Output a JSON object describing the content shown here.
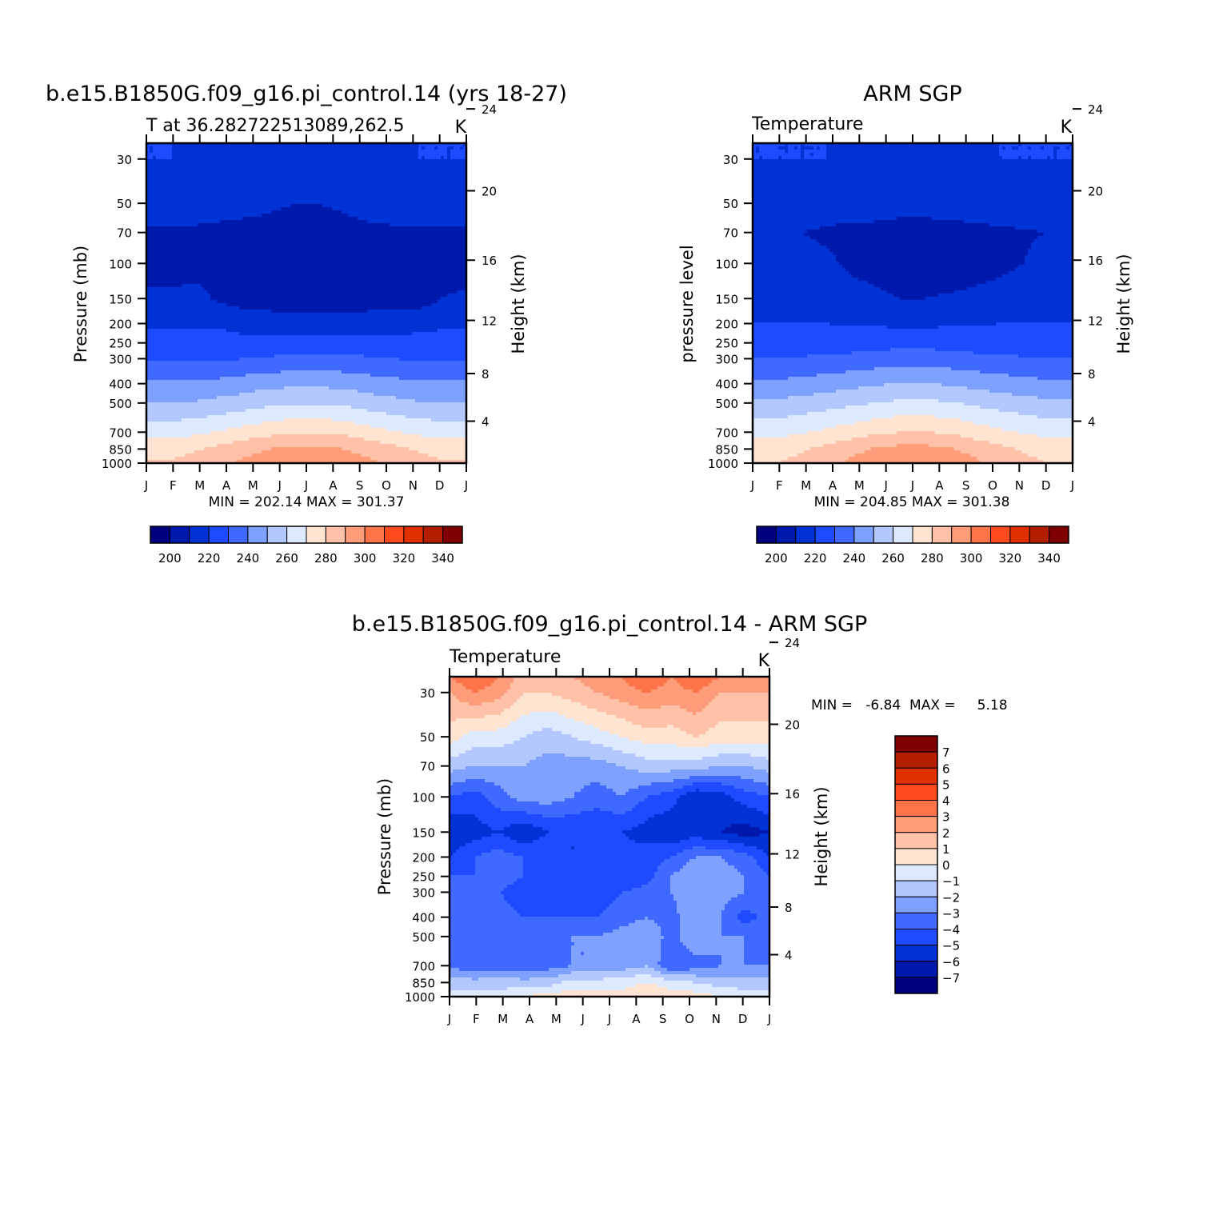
{
  "colors": {
    "abs_palette": [
      "#00007f",
      "#0019ad",
      "#0032d6",
      "#1e4bff",
      "#4069ff",
      "#7ea0ff",
      "#b2c8ff",
      "#dde9ff",
      "#ffe4d2",
      "#ffc1a8",
      "#ff9d7a",
      "#ff7448",
      "#ff4a1e",
      "#e03000",
      "#b31e00",
      "#7e0000"
    ],
    "diff_palette": [
      "#00007f",
      "#0019ad",
      "#0032d6",
      "#1e4bff",
      "#4069ff",
      "#7ea0ff",
      "#b2c8ff",
      "#dde9ff",
      "#ffe4d2",
      "#ffc1a8",
      "#ff9d7a",
      "#ff7448",
      "#ff4a1e",
      "#e03000",
      "#b31e00",
      "#7e0000"
    ]
  },
  "chart_data": [
    {
      "id": "model",
      "type": "heatmap",
      "title": "b.e15.B1850G.f09_g16.pi_control.14 (yrs 18-27)",
      "subtitle_left": "T at 36.282722513089,262.5",
      "units": "K",
      "ylabel": "Pressure (mb)",
      "ylabel_right": "Height (km)",
      "x_ticks": [
        "J",
        "F",
        "M",
        "A",
        "M",
        "J",
        "J",
        "A",
        "S",
        "O",
        "N",
        "D",
        "J"
      ],
      "y_ticks": [
        30,
        50,
        70,
        100,
        150,
        200,
        250,
        300,
        400,
        500,
        700,
        850,
        1000
      ],
      "y_ticks_right": [
        24,
        20,
        16,
        12,
        8,
        4
      ],
      "ylim": [
        1000,
        25
      ],
      "log_pressure": true,
      "stats": "MIN =  202.14  MAX =  301.37",
      "colorbar_labels": [
        "200",
        "220",
        "240",
        "260",
        "280",
        "300",
        "320",
        "340"
      ],
      "levels": [
        200,
        210,
        220,
        230,
        240,
        250,
        260,
        270,
        280,
        290,
        300,
        310,
        320,
        330,
        340
      ],
      "pressure_levels": [
        25,
        30,
        50,
        70,
        100,
        150,
        200,
        250,
        300,
        400,
        500,
        700,
        850,
        1000
      ],
      "values": [
        [
          220,
          220,
          220,
          218,
          216,
          214,
          214,
          214,
          216,
          218,
          220,
          220,
          220,
          220
        ],
        [
          220,
          220,
          219,
          217,
          215,
          213,
          212,
          212,
          214,
          217,
          219,
          220,
          220,
          220
        ],
        [
          217,
          217,
          216,
          215,
          214,
          212,
          210,
          210,
          212,
          215,
          216,
          217,
          217,
          217
        ],
        [
          208,
          208,
          208,
          207,
          206,
          206,
          205,
          205,
          206,
          207,
          208,
          208,
          208,
          208
        ],
        [
          205,
          205,
          205,
          205,
          205,
          205,
          205,
          205,
          205,
          205,
          205,
          205,
          205,
          205
        ],
        [
          212,
          212,
          214,
          208,
          205,
          205,
          205,
          205,
          205,
          205,
          205,
          205,
          210,
          212
        ],
        [
          218,
          218,
          219,
          219,
          216,
          215,
          214,
          214,
          214,
          215,
          216,
          217,
          218,
          218
        ],
        [
          224,
          224,
          224,
          223,
          223,
          224,
          225,
          225,
          225,
          224,
          223,
          223,
          224,
          224
        ],
        [
          229,
          229,
          229,
          229,
          230,
          231,
          232,
          232,
          232,
          231,
          230,
          229,
          229,
          229
        ],
        [
          242,
          242,
          242,
          243,
          245,
          247,
          248,
          248,
          247,
          245,
          243,
          242,
          242,
          242
        ],
        [
          250,
          250,
          251,
          253,
          255,
          258,
          259,
          259,
          258,
          255,
          253,
          251,
          250,
          250
        ],
        [
          266,
          266,
          268,
          271,
          274,
          277,
          279,
          279,
          278,
          274,
          271,
          268,
          266,
          266
        ],
        [
          276,
          276,
          279,
          283,
          287,
          290,
          292,
          292,
          290,
          287,
          283,
          279,
          276,
          276
        ],
        [
          281,
          281,
          284,
          288,
          292,
          296,
          298,
          299,
          296,
          292,
          288,
          284,
          281,
          281
        ]
      ]
    },
    {
      "id": "obs",
      "type": "heatmap",
      "title": "ARM SGP",
      "subtitle_left": "Temperature",
      "units": "K",
      "ylabel": "pressure level",
      "ylabel_right": "Height (km)",
      "x_ticks": [
        "J",
        "F",
        "M",
        "A",
        "M",
        "J",
        "J",
        "A",
        "S",
        "O",
        "N",
        "D",
        "J"
      ],
      "y_ticks": [
        30,
        50,
        70,
        100,
        150,
        200,
        250,
        300,
        400,
        500,
        700,
        850,
        1000
      ],
      "y_ticks_right": [
        24,
        20,
        16,
        12,
        8,
        4
      ],
      "ylim": [
        1000,
        25
      ],
      "log_pressure": true,
      "stats": "MIN =  204.85  MAX =  301.38",
      "colorbar_labels": [
        "200",
        "220",
        "240",
        "260",
        "280",
        "300",
        "320",
        "340"
      ],
      "levels": [
        200,
        210,
        220,
        230,
        240,
        250,
        260,
        270,
        280,
        290,
        300,
        310,
        320,
        330,
        340
      ],
      "pressure_levels": [
        25,
        30,
        50,
        70,
        100,
        150,
        200,
        250,
        300,
        400,
        500,
        700,
        850,
        1000
      ],
      "values": [
        [
          220,
          220,
          220,
          220,
          220,
          218,
          216,
          216,
          218,
          220,
          220,
          220,
          220,
          220
        ],
        [
          220,
          220,
          220,
          220,
          219,
          218,
          217,
          216,
          218,
          219,
          220,
          220,
          220,
          220
        ],
        [
          218,
          218,
          218,
          217,
          216,
          215,
          214,
          214,
          215,
          216,
          217,
          218,
          218,
          218
        ],
        [
          211,
          211,
          210,
          208,
          207,
          207,
          206,
          206,
          206,
          207,
          208,
          209,
          210,
          211
        ],
        [
          213,
          213,
          214,
          212,
          208,
          206,
          205,
          205,
          205,
          206,
          207,
          210,
          213,
          213
        ],
        [
          217,
          217,
          217,
          216,
          214,
          212,
          210,
          210,
          211,
          212,
          214,
          216,
          217,
          217
        ],
        [
          220,
          220,
          220,
          220,
          219,
          219,
          218,
          218,
          219,
          219,
          220,
          220,
          220,
          220
        ],
        [
          224,
          224,
          224,
          224,
          225,
          226,
          227,
          227,
          226,
          225,
          224,
          224,
          224,
          224
        ],
        [
          231,
          231,
          231,
          232,
          233,
          234,
          235,
          235,
          234,
          233,
          232,
          231,
          231,
          231
        ],
        [
          242,
          242,
          243,
          245,
          247,
          249,
          250,
          250,
          249,
          247,
          245,
          243,
          242,
          242
        ],
        [
          252,
          252,
          254,
          256,
          258,
          260,
          262,
          262,
          261,
          258,
          256,
          254,
          252,
          252
        ],
        [
          267,
          267,
          269,
          272,
          275,
          278,
          280,
          280,
          279,
          275,
          272,
          269,
          267,
          267
        ],
        [
          276,
          276,
          279,
          283,
          287,
          291,
          293,
          293,
          291,
          287,
          283,
          279,
          276,
          276
        ],
        [
          280,
          280,
          283,
          287,
          292,
          296,
          299,
          300,
          296,
          292,
          287,
          283,
          280,
          280
        ]
      ]
    },
    {
      "id": "diff",
      "type": "heatmap",
      "title": "b.e15.B1850G.f09_g16.pi_control.14 - ARM SGP",
      "subtitle_left": "Temperature",
      "units": "K",
      "ylabel": "Pressure (mb)",
      "ylabel_right": "Height (km)",
      "x_ticks": [
        "J",
        "F",
        "M",
        "A",
        "M",
        "J",
        "J",
        "A",
        "S",
        "O",
        "N",
        "D",
        "J"
      ],
      "y_ticks": [
        30,
        50,
        70,
        100,
        150,
        200,
        250,
        300,
        400,
        500,
        700,
        850,
        1000
      ],
      "y_ticks_right": [
        24,
        20,
        16,
        12,
        8,
        4
      ],
      "ylim": [
        1000,
        25
      ],
      "log_pressure": true,
      "stats": "MIN =   -6.84  MAX =     5.18",
      "colorbar_labels": [
        "7",
        "6",
        "5",
        "4",
        "3",
        "2",
        "1",
        "0",
        "−1",
        "−2",
        "−3",
        "−4",
        "−5",
        "−6",
        "−7"
      ],
      "levels": [
        -7,
        -6,
        -5,
        -4,
        -3,
        -2,
        -1,
        0,
        1,
        2,
        3,
        4,
        5,
        6,
        7
      ],
      "pressure_levels": [
        25,
        30,
        50,
        70,
        100,
        150,
        200,
        250,
        300,
        400,
        500,
        700,
        850,
        1000
      ],
      "values": [
        [
          3,
          4,
          3,
          1.5,
          1.5,
          2,
          2.5,
          3,
          4,
          3,
          4,
          3,
          3,
          3
        ],
        [
          2,
          3,
          2.5,
          1,
          1,
          1.5,
          2,
          2.5,
          3,
          2.5,
          3,
          2,
          2,
          2
        ],
        [
          0.5,
          -0.5,
          -0.5,
          -1,
          -1.5,
          -1,
          -0.5,
          0,
          0.5,
          0.5,
          1,
          0.5,
          0.5,
          0.5
        ],
        [
          -1.5,
          -2,
          -2,
          -2,
          -2.5,
          -2.5,
          -2.5,
          -2,
          -1.5,
          -1.5,
          -1.5,
          -2,
          -2,
          -1.5
        ],
        [
          -4,
          -4.5,
          -3.5,
          -2.5,
          -2.5,
          -3,
          -3.5,
          -3,
          -4,
          -4.5,
          -6,
          -5.5,
          -4.5,
          -4
        ],
        [
          -6,
          -5.5,
          -5,
          -6,
          -5,
          -5,
          -5,
          -5,
          -5.5,
          -6,
          -5.5,
          -6,
          -6.5,
          -6
        ],
        [
          -5,
          -4,
          -3.5,
          -4,
          -4,
          -5,
          -5,
          -4.5,
          -4.5,
          -4,
          -3,
          -3,
          -3.5,
          -5
        ],
        [
          -4,
          -4,
          -3.5,
          -4,
          -4.5,
          -4.5,
          -5,
          -5,
          -4.5,
          -3,
          -2,
          -2.5,
          -3,
          -4
        ],
        [
          -3.5,
          -3.5,
          -4,
          -4.5,
          -4.5,
          -4.5,
          -4.5,
          -4,
          -3.5,
          -3,
          -2,
          -2.5,
          -3,
          -3.5
        ],
        [
          -3.5,
          -3.5,
          -3.5,
          -4,
          -4,
          -4,
          -4,
          -3.5,
          -3,
          -3.5,
          -2,
          -3,
          -4.5,
          -3.5
        ],
        [
          -3.5,
          -3.5,
          -3.5,
          -3.5,
          -3,
          -3,
          -3,
          -2.5,
          -2,
          -3.5,
          -2,
          -3,
          -3,
          -3.5
        ],
        [
          -3,
          -4,
          -3.5,
          -4,
          -3.5,
          -3,
          -3,
          -2.5,
          -2,
          -4,
          -3.5,
          -3,
          -3,
          -3
        ],
        [
          -1.5,
          -1.5,
          -1.5,
          -1.5,
          -1.5,
          -0.5,
          -0.5,
          -0.5,
          0,
          -0.5,
          -1,
          -1.5,
          -1.5,
          -1.5
        ],
        [
          -0.5,
          -0.5,
          -0.5,
          0,
          0.5,
          0.5,
          0.5,
          0.5,
          1,
          0.5,
          0.5,
          0,
          -0.5,
          -0.5
        ]
      ]
    }
  ]
}
